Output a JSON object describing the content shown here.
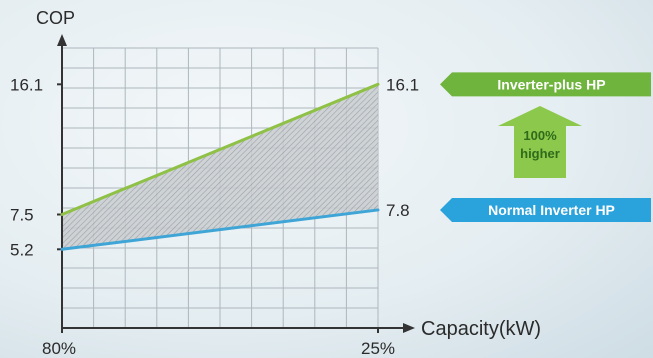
{
  "colors": {
    "upper_line": "#8fc146",
    "lower_line": "#3fa5d6",
    "upper_tag": "#6fb43c",
    "lower_tag": "#2aa2dc",
    "arrow_fill": "#8cc84b",
    "arrow_text": "#2f6b1a",
    "grid": "#aeb7bd",
    "axis": "#333333",
    "background": "#e6eef2"
  },
  "chart_data": {
    "type": "line",
    "x": [
      "80%",
      "25%"
    ],
    "series": [
      {
        "name": "Inverter-plus HP",
        "values": [
          7.5,
          16.1
        ]
      },
      {
        "name": "Normal Inverter HP",
        "values": [
          5.2,
          7.8
        ]
      }
    ],
    "xlabel": "Capacity(kW)",
    "ylabel": "COP",
    "y_ticks": [
      5.2,
      7.5,
      16.1
    ],
    "ylim": [
      0,
      18.5
    ],
    "grid": true,
    "legend": "right",
    "shaded_between_series": true,
    "end_labels": [
      "16.1",
      "7.8"
    ],
    "annotation": {
      "line1": "100%",
      "line2": "higher"
    }
  }
}
